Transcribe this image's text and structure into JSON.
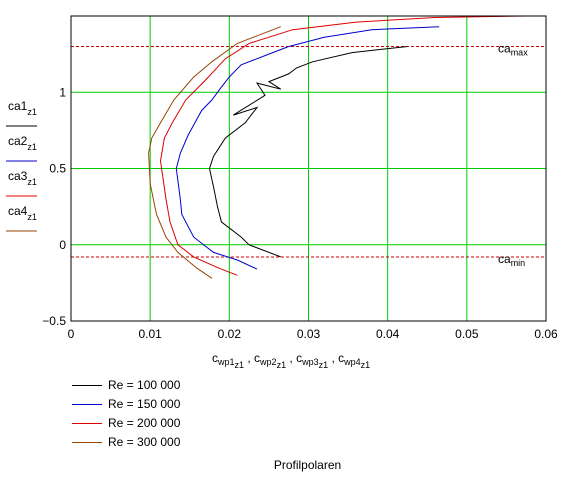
{
  "chart_data": {
    "type": "line",
    "caption": "Profilpolaren",
    "xlabel": {
      "parts": [
        "c",
        "wp1",
        "z1",
        " , c",
        "wp2",
        "z1",
        " , c",
        "wp3",
        "z1",
        " , c",
        "wp4",
        "z1"
      ]
    },
    "ylabels": [
      {
        "main": "ca1",
        "sub": "z1",
        "color": "#000000"
      },
      {
        "main": "ca2",
        "sub": "z1",
        "color": "#0000cc"
      },
      {
        "main": "ca3",
        "sub": "z1",
        "color": "#dd0000"
      },
      {
        "main": "ca4",
        "sub": "z1",
        "color": "#994400"
      }
    ],
    "xlim": [
      0,
      0.06
    ],
    "ylim": [
      -0.5,
      1.5
    ],
    "xticks": [
      0,
      0.01,
      0.02,
      0.03,
      0.04,
      0.05,
      0.06
    ],
    "xtick_labels": [
      "0",
      "0.01",
      "0.02",
      "0.03",
      "0.04",
      "0.05",
      "0.06"
    ],
    "yticks": [
      -0.5,
      0,
      0.5,
      1
    ],
    "ytick_labels": [
      "−0.5",
      "0",
      "0.5",
      "1"
    ],
    "grid": true,
    "grid_color": "#00cc00",
    "reference_lines": [
      {
        "label": "ca_max",
        "y": 1.3,
        "color": "#cc0000"
      },
      {
        "label": "ca_min",
        "y": -0.08,
        "color": "#cc0000"
      }
    ],
    "series": [
      {
        "name": "Re = 100 000",
        "color": "#000000",
        "x": [
          0.0265,
          0.0225,
          0.0215,
          0.019,
          0.0185,
          0.018,
          0.0175,
          0.018,
          0.0195,
          0.022,
          0.0235,
          0.0205,
          0.0245,
          0.0235,
          0.0265,
          0.025,
          0.0275,
          0.0285,
          0.0305,
          0.0355,
          0.0425
        ],
        "y": [
          -0.08,
          0.0,
          0.05,
          0.15,
          0.25,
          0.38,
          0.5,
          0.58,
          0.7,
          0.8,
          0.9,
          0.85,
          0.98,
          1.06,
          1.02,
          1.07,
          1.12,
          1.16,
          1.2,
          1.26,
          1.3
        ]
      },
      {
        "name": "Re = 150 000",
        "color": "#0000cc",
        "x": [
          0.0235,
          0.021,
          0.018,
          0.0155,
          0.014,
          0.0138,
          0.0133,
          0.0138,
          0.0148,
          0.0165,
          0.0178,
          0.0188,
          0.02,
          0.0215,
          0.0245,
          0.0275,
          0.032,
          0.038,
          0.0465
        ],
        "y": [
          -0.16,
          -0.1,
          -0.05,
          0.05,
          0.2,
          0.3,
          0.5,
          0.6,
          0.72,
          0.88,
          0.95,
          1.02,
          1.1,
          1.18,
          1.24,
          1.3,
          1.36,
          1.41,
          1.43
        ]
      },
      {
        "name": "Re = 200 000",
        "color": "#dd0000",
        "x": [
          0.021,
          0.0185,
          0.0155,
          0.0135,
          0.0125,
          0.012,
          0.0113,
          0.0118,
          0.0128,
          0.0145,
          0.017,
          0.0195,
          0.0225,
          0.028,
          0.036,
          0.046,
          0.0575
        ],
        "y": [
          -0.2,
          -0.15,
          -0.08,
          0.0,
          0.15,
          0.3,
          0.55,
          0.7,
          0.8,
          0.95,
          1.08,
          1.22,
          1.32,
          1.41,
          1.46,
          1.49,
          1.5
        ]
      },
      {
        "name": "Re = 300 000",
        "color": "#994400",
        "x": [
          0.0178,
          0.0158,
          0.0135,
          0.012,
          0.0108,
          0.01,
          0.0098,
          0.0102,
          0.0113,
          0.013,
          0.0155,
          0.0178,
          0.021,
          0.0265
        ],
        "y": [
          -0.22,
          -0.15,
          -0.05,
          0.05,
          0.2,
          0.4,
          0.6,
          0.7,
          0.8,
          0.95,
          1.1,
          1.2,
          1.32,
          1.43
        ]
      }
    ]
  }
}
